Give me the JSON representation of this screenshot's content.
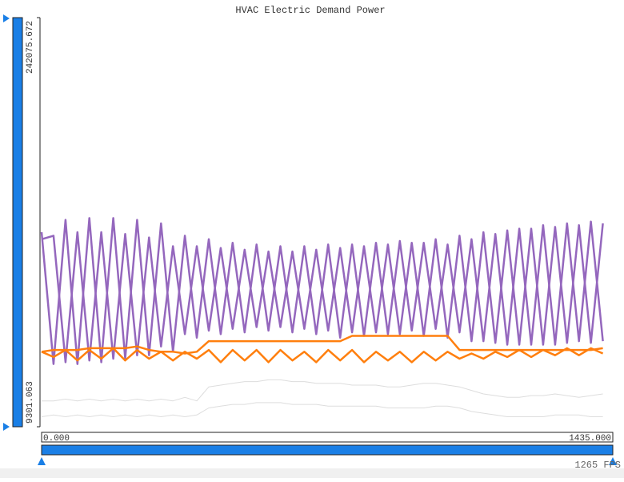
{
  "chart_data": {
    "type": "line",
    "title": "HVAC Electric Demand Power",
    "x": [
      0,
      30,
      60,
      90,
      120,
      150,
      180,
      210,
      240,
      270,
      300,
      330,
      360,
      390,
      420,
      450,
      480,
      510,
      540,
      570,
      600,
      630,
      660,
      690,
      720,
      750,
      780,
      810,
      840,
      870,
      900,
      930,
      960,
      990,
      1020,
      1050,
      1080,
      1110,
      1140,
      1170,
      1200,
      1230,
      1260,
      1290,
      1320,
      1350,
      1380,
      1410
    ],
    "xlim": [
      0,
      1435
    ],
    "xticks": [
      {
        "value": 0,
        "label": "0.000"
      },
      {
        "value": 1435,
        "label": "1435.000"
      }
    ],
    "ylim": [
      9301.063,
      242075.672
    ],
    "yticks": [
      9301.063,
      242075.672
    ],
    "grid": false,
    "series": [
      {
        "color": "#dddddd",
        "values": [
          24000,
          24000,
          25000,
          24000,
          25000,
          24000,
          25000,
          24000,
          25000,
          24000,
          25000,
          24000,
          26000,
          24000,
          32000,
          33000,
          34000,
          35000,
          35000,
          36000,
          36000,
          35000,
          35000,
          34000,
          34000,
          34000,
          33000,
          33000,
          33000,
          32000,
          32000,
          33000,
          34000,
          34000,
          33000,
          32000,
          30000,
          28000,
          27000,
          26000,
          26000,
          27000,
          27000,
          28000,
          27000,
          26000,
          27000,
          28000
        ]
      },
      {
        "color": "#dddddd",
        "values": [
          15000,
          16000,
          15000,
          16000,
          15000,
          16000,
          15000,
          16000,
          15000,
          16000,
          15000,
          16000,
          15000,
          16000,
          20000,
          21000,
          22000,
          22000,
          23000,
          23000,
          23000,
          22000,
          22000,
          22000,
          21000,
          21000,
          21000,
          21000,
          21000,
          20000,
          20000,
          20000,
          20000,
          21000,
          21000,
          20000,
          18000,
          17000,
          16000,
          15000,
          15000,
          15000,
          15000,
          16000,
          16000,
          16000,
          15000,
          15000
        ]
      },
      {
        "color": "#9467bd",
        "values": [
          120000,
          45000,
          127000,
          45000,
          128000,
          46000,
          128000,
          48000,
          127000,
          50000,
          125000,
          52000,
          118000,
          60000,
          116000,
          62000,
          114000,
          63000,
          113000,
          64000,
          112000,
          63000,
          112000,
          62000,
          113000,
          60000,
          113000,
          61000,
          114000,
          62000,
          115000,
          64000,
          114000,
          65000,
          113000,
          63000,
          116000,
          58000,
          119000,
          56000,
          122000,
          56000,
          124000,
          56000,
          125000,
          58000,
          126000,
          58000
        ]
      },
      {
        "color": "#9467bd",
        "values": [
          116000,
          118000,
          46000,
          120000,
          47000,
          120000,
          48000,
          119000,
          50000,
          117000,
          55000,
          112000,
          62000,
          112000,
          64000,
          111000,
          65000,
          110000,
          66000,
          109000,
          66000,
          109000,
          65000,
          110000,
          64000,
          111000,
          63000,
          112000,
          63000,
          113000,
          62000,
          114000,
          61000,
          116000,
          60000,
          118000,
          58000,
          120000,
          57000,
          121000,
          56000,
          122000,
          56000,
          123000,
          57000,
          124000,
          57000,
          125000
        ]
      },
      {
        "color": "#ff7f0e",
        "values": [
          52000,
          49000,
          53000,
          47000,
          53000,
          48000,
          54000,
          47000,
          53000,
          48000,
          52000,
          47000,
          52000,
          48000,
          53000,
          46000,
          53000,
          47000,
          53000,
          46000,
          53000,
          47000,
          52000,
          46000,
          53000,
          47000,
          53000,
          46000,
          52000,
          47000,
          52000,
          46000,
          52000,
          47000,
          52000,
          48000,
          51000,
          48000,
          52000,
          49000,
          53000,
          49000,
          53000,
          50000,
          54000,
          50000,
          54000,
          51000
        ]
      },
      {
        "color": "#ff7f0e",
        "values": [
          52000,
          53000,
          53000,
          53000,
          54000,
          54000,
          54000,
          54000,
          55000,
          53000,
          52000,
          52000,
          51000,
          52000,
          58000,
          58000,
          58000,
          58000,
          58000,
          58000,
          58000,
          58000,
          58000,
          58000,
          58000,
          58000,
          61000,
          61000,
          61000,
          61000,
          61000,
          61000,
          61000,
          61000,
          61000,
          53000,
          53000,
          53000,
          53000,
          53000,
          53000,
          53000,
          53000,
          53000,
          53000,
          53000,
          53000,
          54000
        ]
      }
    ]
  },
  "status": {
    "fps": "1265 FPS"
  }
}
